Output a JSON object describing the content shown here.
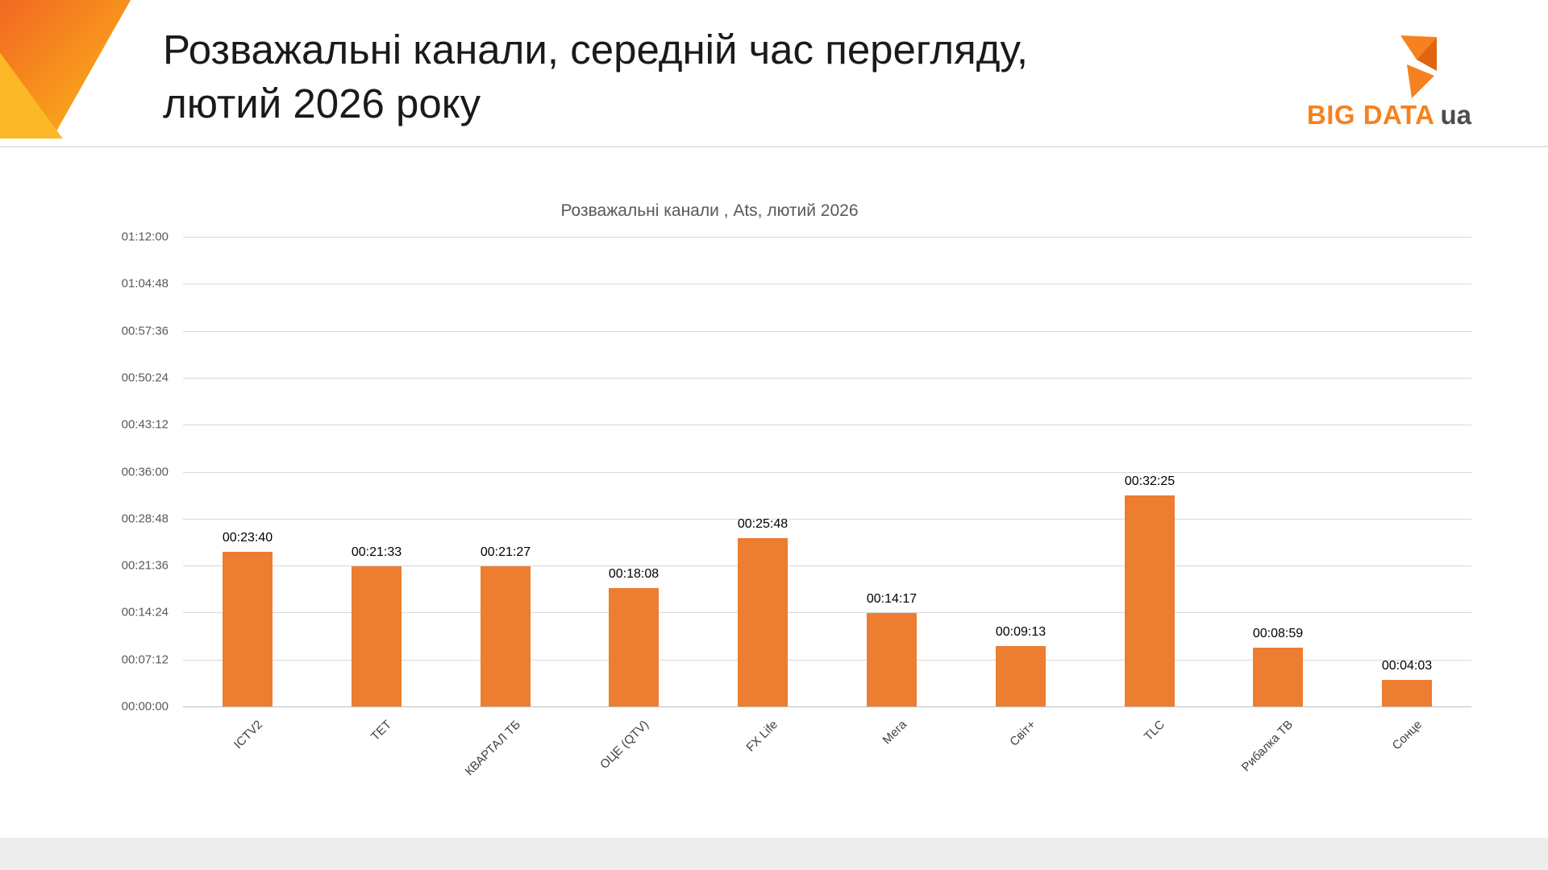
{
  "header": {
    "title_line1": "Розважальні канали, середній час перегляду,",
    "title_line2": "лютий 2026 року",
    "logo": {
      "brand": "BIG DATA",
      "suffix": "ua",
      "icon": "bigdata-flame-icon"
    }
  },
  "chart_data": {
    "type": "bar",
    "title": "Розважальні канали , Ats, лютий 2026",
    "xlabel": "",
    "ylabel": "",
    "categories": [
      "ICTV2",
      "ТЕТ",
      "КВАРТАЛ ТБ",
      "ОЦЕ (QTV)",
      "FX Life",
      "Мега",
      "Світ+",
      "TLC",
      "Рибалка ТВ",
      "Сонце"
    ],
    "values": [
      "00:23:40",
      "00:21:33",
      "00:21:27",
      "00:18:08",
      "00:25:48",
      "00:14:17",
      "00:09:13",
      "00:32:25",
      "00:08:59",
      "00:04:03"
    ],
    "values_seconds": [
      1420,
      1293,
      1287,
      1088,
      1548,
      857,
      553,
      1945,
      539,
      243
    ],
    "y_ticks": [
      "01:12:00",
      "01:04:48",
      "00:57:36",
      "00:50:24",
      "00:43:12",
      "00:36:00",
      "00:28:48",
      "00:21:36",
      "00:14:24",
      "00:07:12",
      "00:00:00"
    ],
    "y_max_seconds": 4320,
    "ylim_seconds": [
      0,
      4320
    ],
    "grid": true,
    "legend": false,
    "bar_color": "#ED7D31"
  },
  "colors": {
    "accent_orange": "#F5821F",
    "accent_deep_orange": "#F26822",
    "accent_yellow": "#FCB826",
    "bar_orange": "#ED7D31",
    "grid_line": "#D9D9D9",
    "axis_text": "#595959",
    "logo_gray": "#4D4D4F"
  }
}
